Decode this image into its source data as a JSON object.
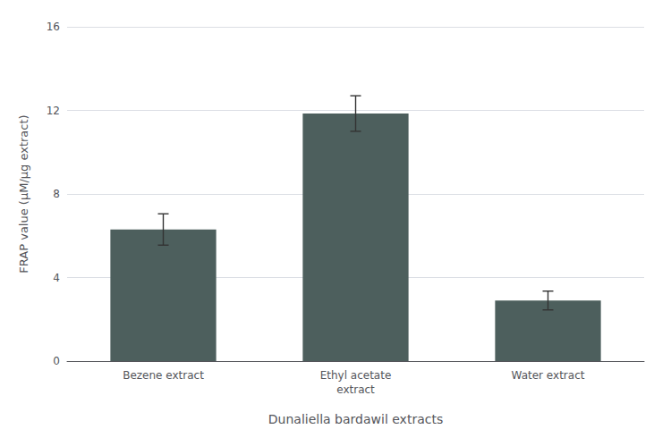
{
  "chart_data": {
    "type": "bar",
    "categories": [
      "Bezene extract",
      "Ethyl acetate\nextract",
      "Water extract"
    ],
    "values": [
      6.3,
      11.85,
      2.9
    ],
    "errors": [
      0.75,
      0.85,
      0.45
    ],
    "color": "#4d5f5d",
    "xlabel": "Dunaliella bardawil extracts",
    "ylabel": "FRAP value (μM/μg extract)",
    "ylim": [
      0,
      16
    ],
    "yticks": [
      0,
      4,
      8,
      12,
      16
    ],
    "grid": true
  }
}
